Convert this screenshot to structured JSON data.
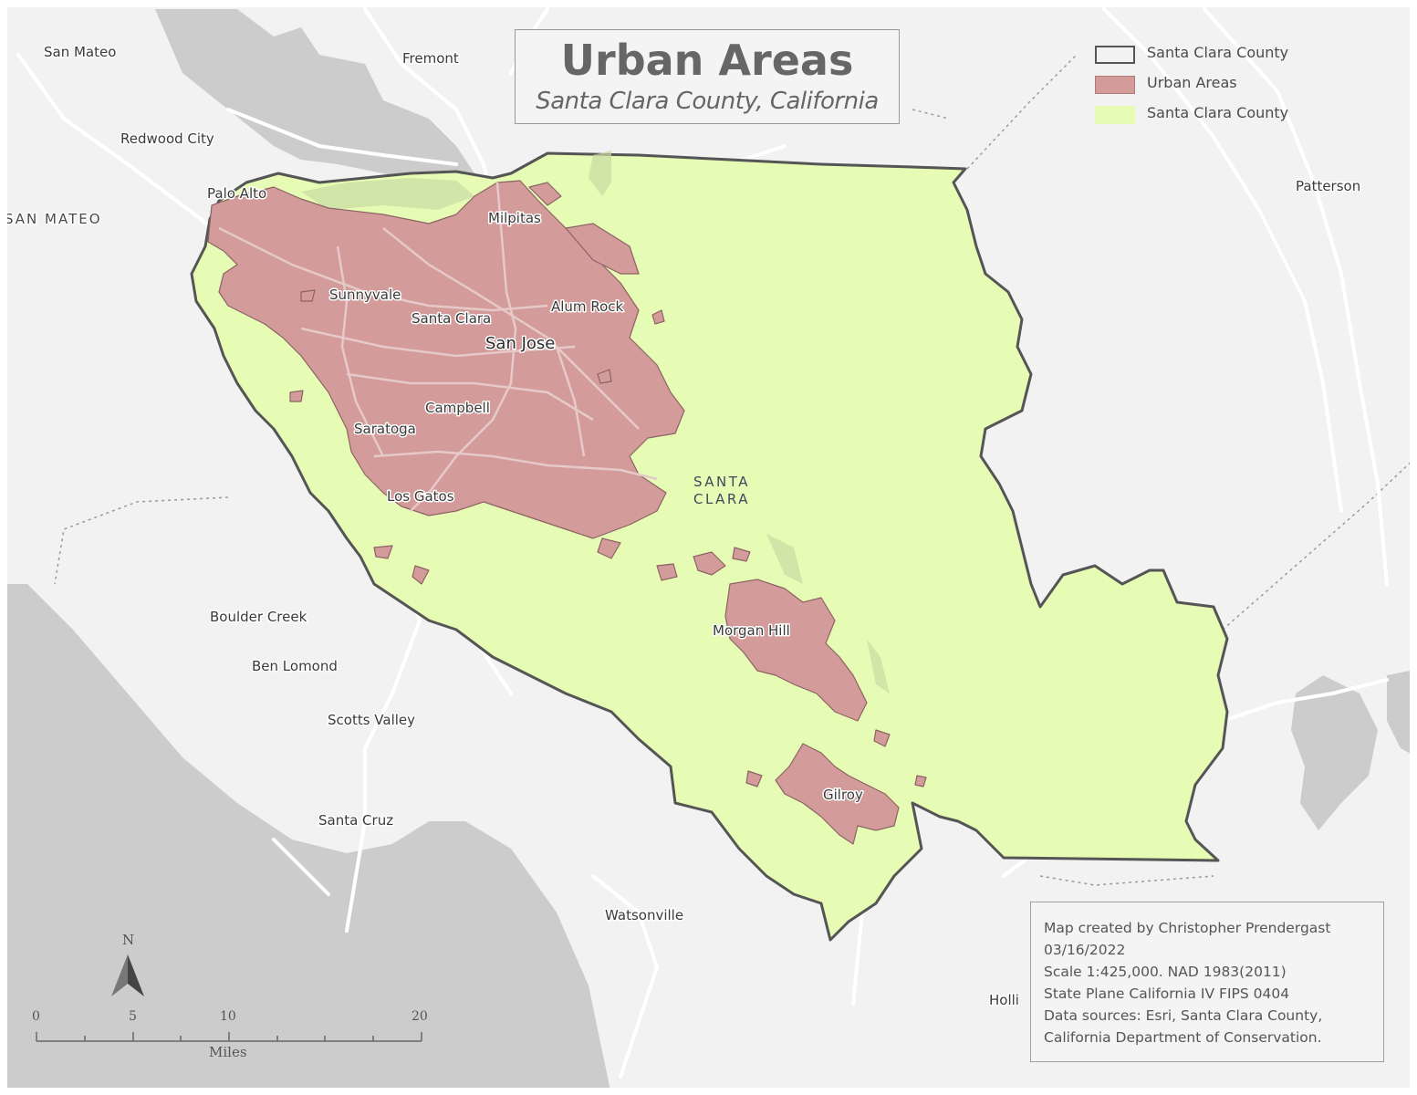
{
  "title": "Urban Areas",
  "subtitle": "Santa Clara County, California",
  "legend": [
    {
      "label": "Santa Clara County",
      "swatch": "outline",
      "fill": "#f2f2f2",
      "stroke": "#555555"
    },
    {
      "label": "Urban Areas",
      "swatch": "fill",
      "fill": "#d49b9b",
      "stroke": "#b07a7a"
    },
    {
      "label": "Santa Clara County",
      "swatch": "fill",
      "fill": "#e6fbb4",
      "stroke": "#e6fbb4"
    }
  ],
  "colors": {
    "background": "#f2f2f2",
    "water": "#cccccc",
    "county_fill": "#e6fbb4",
    "county_outline": "#555555",
    "urban_fill": "#d49b9b",
    "roads": "#ffffff"
  },
  "places": {
    "san_mateo": "San Mateo",
    "fremont": "Fremont",
    "redwood_city": "Redwood City",
    "palo_alto": "Palo Alto",
    "san_mateo_county": "SAN MATEO",
    "milpitas": "Milpitas",
    "sunnyvale": "Sunnyvale",
    "alum_rock": "Alum Rock",
    "santa_clara": "Santa Clara",
    "san_jose": "San Jose",
    "campbell": "Campbell",
    "saratoga": "Saratoga",
    "los_gatos": "Los Gatos",
    "santa_clara_county_line1": "SANTA",
    "santa_clara_county_line2": "CLARA",
    "patterson": "Patterson",
    "boulder_creek": "Boulder Creek",
    "ben_lomond": "Ben Lomond",
    "scotts_valley": "Scotts Valley",
    "santa_cruz": "Santa Cruz",
    "morgan_hill": "Morgan Hill",
    "gilroy": "Gilroy",
    "watsonville": "Watsonville",
    "holli": "Holli"
  },
  "north_arrow": {
    "label": "N"
  },
  "scale_bar": {
    "ticks": [
      "0",
      "5",
      "10",
      "20"
    ],
    "unit": "Miles"
  },
  "credits": [
    "Map created by Christopher Prendergast",
    "03/16/2022",
    "Scale 1:425,000. NAD 1983(2011)",
    "State Plane California IV FIPS 0404",
    "Data sources: Esri, Santa Clara County,",
    "California Department of Conservation."
  ]
}
